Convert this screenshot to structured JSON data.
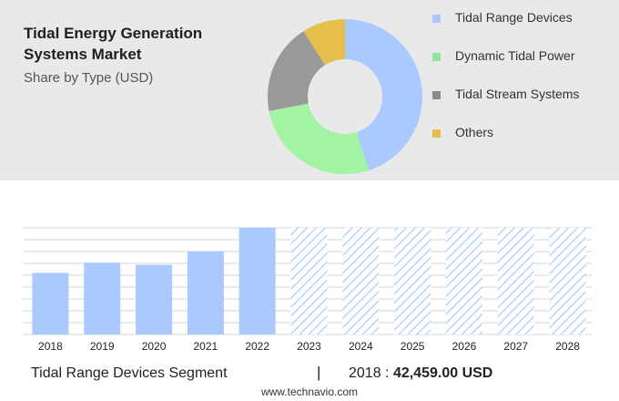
{
  "header": {
    "title": "Tidal Energy Generation Systems Market",
    "subtitle": "Share by Type (USD)"
  },
  "donut": {
    "segments": [
      {
        "label": "Tidal Range Devices",
        "share": 0.45,
        "color": "#a9c9ff"
      },
      {
        "label": "Dynamic Tidal Power",
        "share": 0.27,
        "color": "#a4f3a4"
      },
      {
        "label": "Tidal Stream Systems",
        "share": 0.19,
        "color": "#999999"
      },
      {
        "label": "Others",
        "share": 0.09,
        "color": "#e5be4c"
      }
    ]
  },
  "legend": {
    "items": [
      {
        "label": "Tidal Range Devices",
        "color": "#a9c9ff"
      },
      {
        "label": "Dynamic Tidal Power",
        "color": "#8ee59a"
      },
      {
        "label": "Tidal Stream Systems",
        "color": "#8a8a8a"
      },
      {
        "label": "Others",
        "color": "#e5be4c"
      }
    ]
  },
  "chart_data": {
    "type": "bar",
    "categories": [
      "2018",
      "2019",
      "2020",
      "2021",
      "2022",
      "2023",
      "2024",
      "2025",
      "2026",
      "2027",
      "2028"
    ],
    "values": [
      42459,
      49500,
      48000,
      57300,
      73500,
      null,
      null,
      null,
      null,
      null,
      null
    ],
    "forecast_categories": [
      "2023",
      "2024",
      "2025",
      "2026",
      "2027",
      "2028"
    ],
    "ylim": [
      0,
      73500
    ],
    "grid": true,
    "bar_color": "#a9c9ff",
    "forecast_color": "#a9c9ff"
  },
  "footer": {
    "segment_label": "Tidal Range Devices Segment",
    "separator": "|",
    "year_label": "2018 :",
    "value": "42,459.00 USD",
    "source": "www.technavio.com"
  }
}
